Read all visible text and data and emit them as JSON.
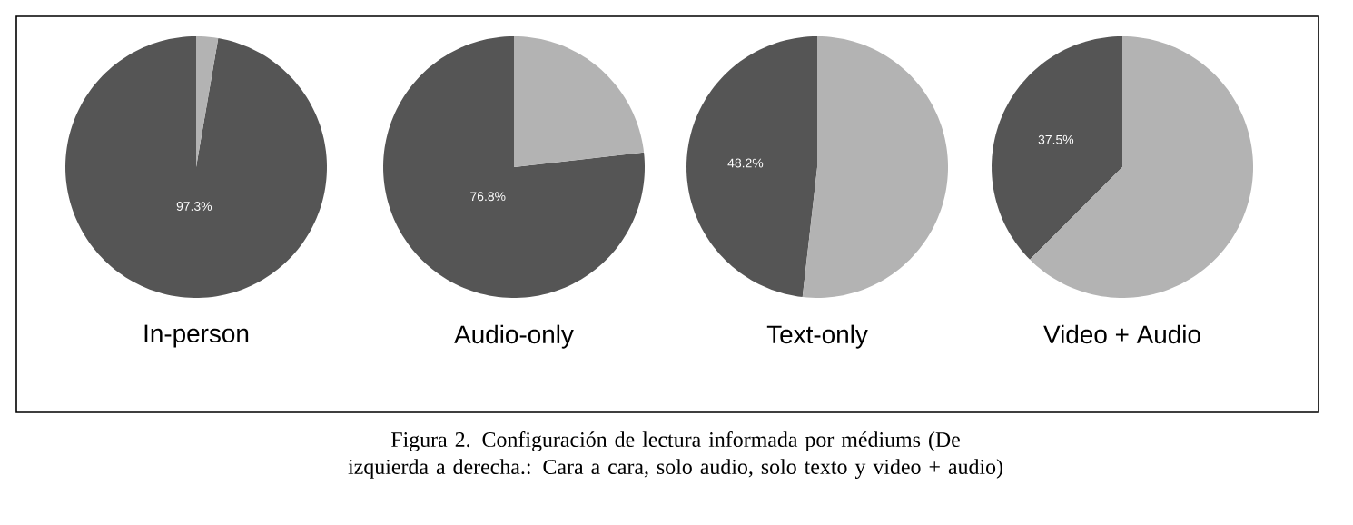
{
  "chart_data": [
    {
      "type": "pie",
      "title": "In-person",
      "categories": [
        null,
        null
      ],
      "values": [
        97.3,
        2.7
      ],
      "colors": [
        "#555555",
        "#b3b3b3"
      ],
      "value_labels": [
        "97.3%",
        null
      ],
      "annotations": [
        "Figura 2. Configuración de lectura informada por médiums (De izquierda a derecha.: Cara a cara, solo audio, solo texto y video + audio)"
      ]
    },
    {
      "type": "pie",
      "title": "Audio-only",
      "categories": [
        null,
        null
      ],
      "values": [
        76.8,
        23.2
      ],
      "colors": [
        "#555555",
        "#b3b3b3"
      ],
      "value_labels": [
        "76.8%",
        null
      ]
    },
    {
      "type": "pie",
      "title": "Text-only",
      "categories": [
        null,
        null
      ],
      "values": [
        48.2,
        51.8
      ],
      "colors": [
        "#555555",
        "#b3b3b3"
      ],
      "value_labels": [
        "48.2%",
        null
      ]
    },
    {
      "type": "pie",
      "title": "Video + Audio",
      "categories": [
        null,
        null
      ],
      "values": [
        37.5,
        62.5
      ],
      "colors": [
        "#555555",
        "#b3b3b3"
      ],
      "value_labels": [
        "37.5%",
        null
      ]
    }
  ]
}
